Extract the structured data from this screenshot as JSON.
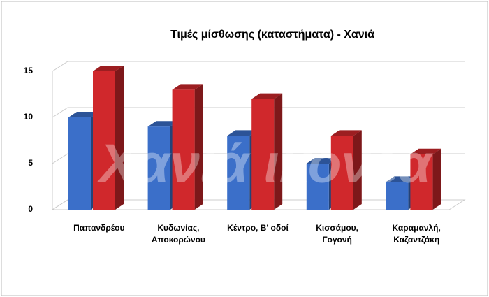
{
  "chart_data": {
    "type": "bar3d",
    "title": "Τιμές μίσθωσης (καταστήματα) - Χανιά",
    "watermark": "Χανιά ικονέα",
    "categories": [
      "Παπανδρέου",
      "Κυδωνίας, Αποκορώνου",
      "Κέντρο, Β' οδοί",
      "Κισσάμου, Γογονή",
      "Καραμανλή, Καζαντζάκη"
    ],
    "series": [
      {
        "color": "#3b6fc9",
        "values": [
          10,
          9,
          8,
          5,
          3
        ]
      },
      {
        "color": "#d0282c",
        "values": [
          15,
          13,
          12,
          8,
          6
        ]
      }
    ],
    "ylim": [
      0,
      15
    ],
    "yticks": [
      0,
      5,
      10,
      15
    ],
    "grid": true
  }
}
